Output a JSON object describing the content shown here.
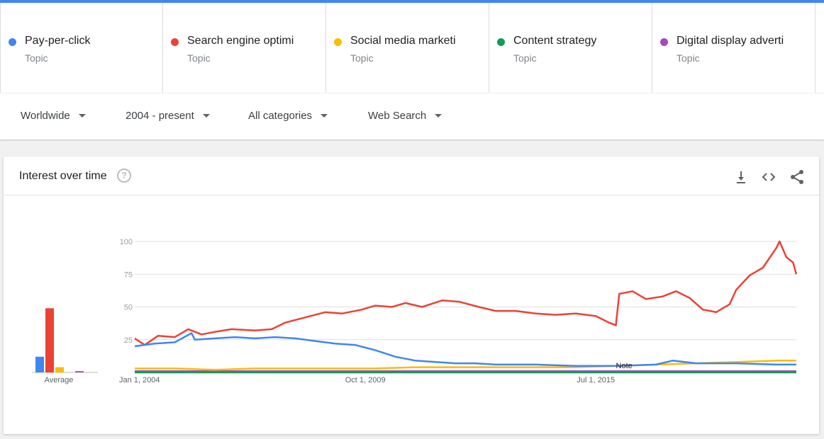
{
  "terms": [
    {
      "name": "Pay-per-click",
      "sub": "Topic",
      "color": "#4285f4"
    },
    {
      "name": "Search engine optimi",
      "sub": "Topic",
      "color": "#ea4335"
    },
    {
      "name": "Social media marketi",
      "sub": "Topic",
      "color": "#fbbc04"
    },
    {
      "name": "Content strategy",
      "sub": "Topic",
      "color": "#0f9d58"
    },
    {
      "name": "Digital display adverti",
      "sub": "Topic",
      "color": "#ab47bc"
    }
  ],
  "filters": {
    "region": "Worldwide",
    "time": "2004 - present",
    "category": "All categories",
    "property": "Web Search"
  },
  "card": {
    "title": "Interest over time",
    "help_icon": "?",
    "icons": [
      "download-icon",
      "embed-code-icon",
      "share-icon"
    ]
  },
  "chart_data": {
    "type": "line",
    "title": "Interest over time",
    "ylim": [
      0,
      100
    ],
    "yticks": [
      25,
      50,
      75,
      100
    ],
    "x_ticks": [
      "Jan 1, 2004",
      "Oct 1, 2009",
      "Jul 1, 2015"
    ],
    "x_range": [
      "2004-01",
      "2020-07"
    ],
    "grid": true,
    "note_label": "Note",
    "note_date": "2016-01",
    "average_label": "Average",
    "averages": [
      {
        "series": "Pay-per-click",
        "value": 12
      },
      {
        "series": "Search engine optimi",
        "value": 49
      },
      {
        "series": "Social media marketi",
        "value": 4
      },
      {
        "series": "Content strategy",
        "value": 0
      },
      {
        "series": "Digital display adverti",
        "value": 1
      }
    ],
    "series": [
      {
        "name": "Pay-per-click",
        "color": "#4285f4",
        "points": [
          [
            "2004-01",
            20
          ],
          [
            "2004-07",
            22
          ],
          [
            "2005-01",
            23
          ],
          [
            "2005-06",
            30
          ],
          [
            "2005-07",
            25
          ],
          [
            "2006-01",
            26
          ],
          [
            "2006-07",
            27
          ],
          [
            "2007-01",
            26
          ],
          [
            "2007-07",
            27
          ],
          [
            "2008-01",
            26
          ],
          [
            "2008-07",
            24
          ],
          [
            "2009-01",
            22
          ],
          [
            "2009-07",
            21
          ],
          [
            "2010-01",
            17
          ],
          [
            "2010-07",
            12
          ],
          [
            "2011-01",
            9
          ],
          [
            "2011-07",
            8
          ],
          [
            "2012-01",
            7
          ],
          [
            "2012-07",
            7
          ],
          [
            "2013-01",
            6
          ],
          [
            "2014-01",
            6
          ],
          [
            "2015-01",
            5
          ],
          [
            "2016-01",
            5
          ],
          [
            "2017-01",
            6
          ],
          [
            "2017-06",
            9
          ],
          [
            "2018-01",
            7
          ],
          [
            "2019-01",
            7
          ],
          [
            "2020-01",
            6
          ],
          [
            "2020-07",
            6
          ]
        ]
      },
      {
        "name": "Search engine optimi",
        "color": "#ea4335",
        "points": [
          [
            "2004-01",
            26
          ],
          [
            "2004-04",
            21
          ],
          [
            "2004-08",
            28
          ],
          [
            "2005-01",
            27
          ],
          [
            "2005-05",
            33
          ],
          [
            "2005-09",
            29
          ],
          [
            "2006-01",
            31
          ],
          [
            "2006-06",
            33
          ],
          [
            "2007-01",
            32
          ],
          [
            "2007-06",
            33
          ],
          [
            "2007-10",
            38
          ],
          [
            "2008-04",
            42
          ],
          [
            "2008-10",
            46
          ],
          [
            "2009-03",
            45
          ],
          [
            "2009-09",
            48
          ],
          [
            "2010-01",
            51
          ],
          [
            "2010-06",
            50
          ],
          [
            "2010-10",
            53
          ],
          [
            "2011-03",
            50
          ],
          [
            "2011-09",
            55
          ],
          [
            "2012-02",
            54
          ],
          [
            "2012-08",
            50
          ],
          [
            "2013-01",
            47
          ],
          [
            "2013-07",
            47
          ],
          [
            "2014-01",
            45
          ],
          [
            "2014-07",
            44
          ],
          [
            "2015-01",
            45
          ],
          [
            "2015-07",
            43
          ],
          [
            "2015-11",
            38
          ],
          [
            "2016-01",
            36
          ],
          [
            "2016-02",
            60
          ],
          [
            "2016-06",
            62
          ],
          [
            "2016-10",
            56
          ],
          [
            "2017-03",
            58
          ],
          [
            "2017-07",
            62
          ],
          [
            "2017-11",
            57
          ],
          [
            "2018-03",
            48
          ],
          [
            "2018-07",
            46
          ],
          [
            "2018-11",
            52
          ],
          [
            "2019-01",
            63
          ],
          [
            "2019-05",
            74
          ],
          [
            "2019-09",
            80
          ],
          [
            "2020-01",
            95
          ],
          [
            "2020-02",
            100
          ],
          [
            "2020-04",
            88
          ],
          [
            "2020-06",
            84
          ],
          [
            "2020-07",
            75
          ]
        ]
      },
      {
        "name": "Social media marketi",
        "color": "#fbbc04",
        "points": [
          [
            "2004-01",
            3
          ],
          [
            "2005-01",
            3
          ],
          [
            "2006-01",
            2
          ],
          [
            "2007-01",
            3
          ],
          [
            "2008-01",
            3
          ],
          [
            "2009-01",
            3
          ],
          [
            "2010-01",
            3
          ],
          [
            "2011-01",
            4
          ],
          [
            "2012-01",
            4
          ],
          [
            "2013-01",
            4
          ],
          [
            "2014-01",
            4
          ],
          [
            "2015-01",
            4
          ],
          [
            "2016-01",
            5
          ],
          [
            "2017-01",
            6
          ],
          [
            "2018-01",
            7
          ],
          [
            "2019-01",
            8
          ],
          [
            "2020-01",
            9
          ],
          [
            "2020-07",
            9
          ]
        ]
      },
      {
        "name": "Content strategy",
        "color": "#0f9d58",
        "points": [
          [
            "2004-01",
            0
          ],
          [
            "2020-07",
            0
          ]
        ]
      },
      {
        "name": "Digital display adverti",
        "color": "#ab47bc",
        "points": [
          [
            "2004-01",
            1
          ],
          [
            "2008-01",
            1
          ],
          [
            "2012-01",
            1
          ],
          [
            "2016-01",
            1
          ],
          [
            "2020-07",
            1
          ]
        ]
      }
    ]
  }
}
